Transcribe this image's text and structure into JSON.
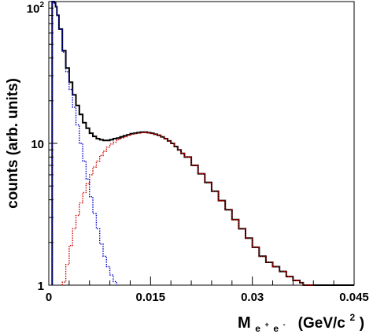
{
  "chart_data": {
    "type": "line",
    "step": true,
    "xlabel": {
      "main": "M",
      "sub": "e",
      "sub_sup1": "+",
      "sub2": " e",
      "sub_sup2": "-",
      "unit_open": "  (GeV/c",
      "unit_sup": "2",
      "unit_close": ")"
    },
    "ylabel": "counts (arb. units)",
    "xlim": [
      0,
      0.045
    ],
    "ylim": [
      1,
      100
    ],
    "yscale": "log",
    "grid": false,
    "legend": "none",
    "x_ticks": [
      {
        "value": 0,
        "label": "0"
      },
      {
        "value": 0.015,
        "label": "0.015"
      },
      {
        "value": 0.03,
        "label": "0.03"
      },
      {
        "value": 0.045,
        "label": "0.045"
      }
    ],
    "y_ticks": [
      {
        "value": 1,
        "label": "1"
      },
      {
        "value": 10,
        "label": "10"
      },
      {
        "value": 100,
        "label": "10",
        "sup": "2"
      }
    ],
    "series": [
      {
        "color": "#000000",
        "style": "solid",
        "x": [
          0.0005,
          0.0008,
          0.001,
          0.0012,
          0.0015,
          0.002,
          0.0025,
          0.003,
          0.0035,
          0.004,
          0.0045,
          0.005,
          0.0055,
          0.006,
          0.0065,
          0.007,
          0.0075,
          0.008,
          0.0085,
          0.009,
          0.0095,
          0.01,
          0.0105,
          0.011,
          0.0115,
          0.012,
          0.0125,
          0.013,
          0.0135,
          0.014,
          0.0145,
          0.015,
          0.0155,
          0.016,
          0.0165,
          0.017,
          0.0175,
          0.018,
          0.0185,
          0.019,
          0.0195,
          0.02,
          0.021,
          0.022,
          0.023,
          0.024,
          0.025,
          0.026,
          0.027,
          0.028,
          0.029,
          0.03,
          0.031,
          0.032,
          0.033,
          0.034,
          0.035,
          0.036,
          0.037,
          0.0375,
          0.038,
          0.0385,
          0.039,
          0.0395,
          0.04,
          0.045
        ],
        "values": [
          100,
          98,
          92,
          80,
          64,
          45,
          34,
          27,
          22,
          18.5,
          16,
          14,
          12.8,
          11.8,
          11.2,
          10.8,
          10.6,
          10.5,
          10.5,
          10.6,
          10.8,
          10.9,
          11.1,
          11.3,
          11.5,
          11.7,
          11.8,
          11.9,
          12.0,
          12.0,
          11.9,
          11.8,
          11.6,
          11.4,
          11.1,
          10.8,
          10.4,
          10.0,
          9.5,
          9.0,
          8.5,
          8.0,
          7.0,
          6.1,
          5.3,
          4.6,
          3.95,
          3.4,
          2.9,
          2.5,
          2.15,
          1.85,
          1.6,
          1.45,
          1.35,
          1.25,
          1.15,
          1.08,
          1.04,
          1.0,
          1.0,
          1.0,
          1.0,
          1.0,
          1.0,
          1.0
        ]
      },
      {
        "color": "#0000cc",
        "style": "dotted",
        "x": [
          0.0005,
          0.0008,
          0.001,
          0.0012,
          0.0015,
          0.002,
          0.0025,
          0.003,
          0.0035,
          0.004,
          0.0045,
          0.005,
          0.0055,
          0.006,
          0.0065,
          0.007,
          0.0075,
          0.008,
          0.0085,
          0.009,
          0.0095,
          0.01
        ],
        "values": [
          100,
          98,
          92,
          80,
          64,
          44,
          32,
          24,
          18,
          13.5,
          10,
          7.5,
          5.6,
          4.2,
          3.2,
          2.5,
          1.95,
          1.6,
          1.35,
          1.18,
          1.06,
          1.0
        ]
      },
      {
        "color": "#cc0000",
        "style": "dotted",
        "x": [
          0.002,
          0.0025,
          0.003,
          0.0035,
          0.004,
          0.0045,
          0.005,
          0.0055,
          0.006,
          0.0065,
          0.007,
          0.0075,
          0.008,
          0.0085,
          0.009,
          0.0095,
          0.01,
          0.0105,
          0.011,
          0.0115,
          0.012,
          0.0125,
          0.013,
          0.0135,
          0.014,
          0.0145,
          0.015,
          0.0155,
          0.016,
          0.0165,
          0.017,
          0.0175,
          0.018,
          0.0185,
          0.019,
          0.0195,
          0.02,
          0.021,
          0.022,
          0.023,
          0.024,
          0.025,
          0.026,
          0.027,
          0.028,
          0.029,
          0.03,
          0.031,
          0.032,
          0.033,
          0.034,
          0.035,
          0.036,
          0.037,
          0.0375,
          0.038,
          0.0385,
          0.039
        ],
        "values": [
          1.05,
          1.4,
          1.9,
          2.5,
          3.1,
          3.8,
          4.5,
          5.2,
          6.0,
          6.8,
          7.5,
          8.2,
          8.8,
          9.4,
          9.9,
          10.2,
          10.6,
          10.9,
          11.1,
          11.4,
          11.6,
          11.7,
          11.8,
          11.9,
          11.9,
          11.9,
          11.8,
          11.6,
          11.4,
          11.1,
          10.8,
          10.4,
          10.0,
          9.5,
          9.0,
          8.5,
          8.0,
          7.0,
          6.1,
          5.3,
          4.6,
          3.95,
          3.4,
          2.9,
          2.5,
          2.15,
          1.85,
          1.6,
          1.45,
          1.35,
          1.25,
          1.15,
          1.08,
          1.04,
          1.0,
          1.0,
          1.0,
          1.0
        ]
      }
    ]
  }
}
